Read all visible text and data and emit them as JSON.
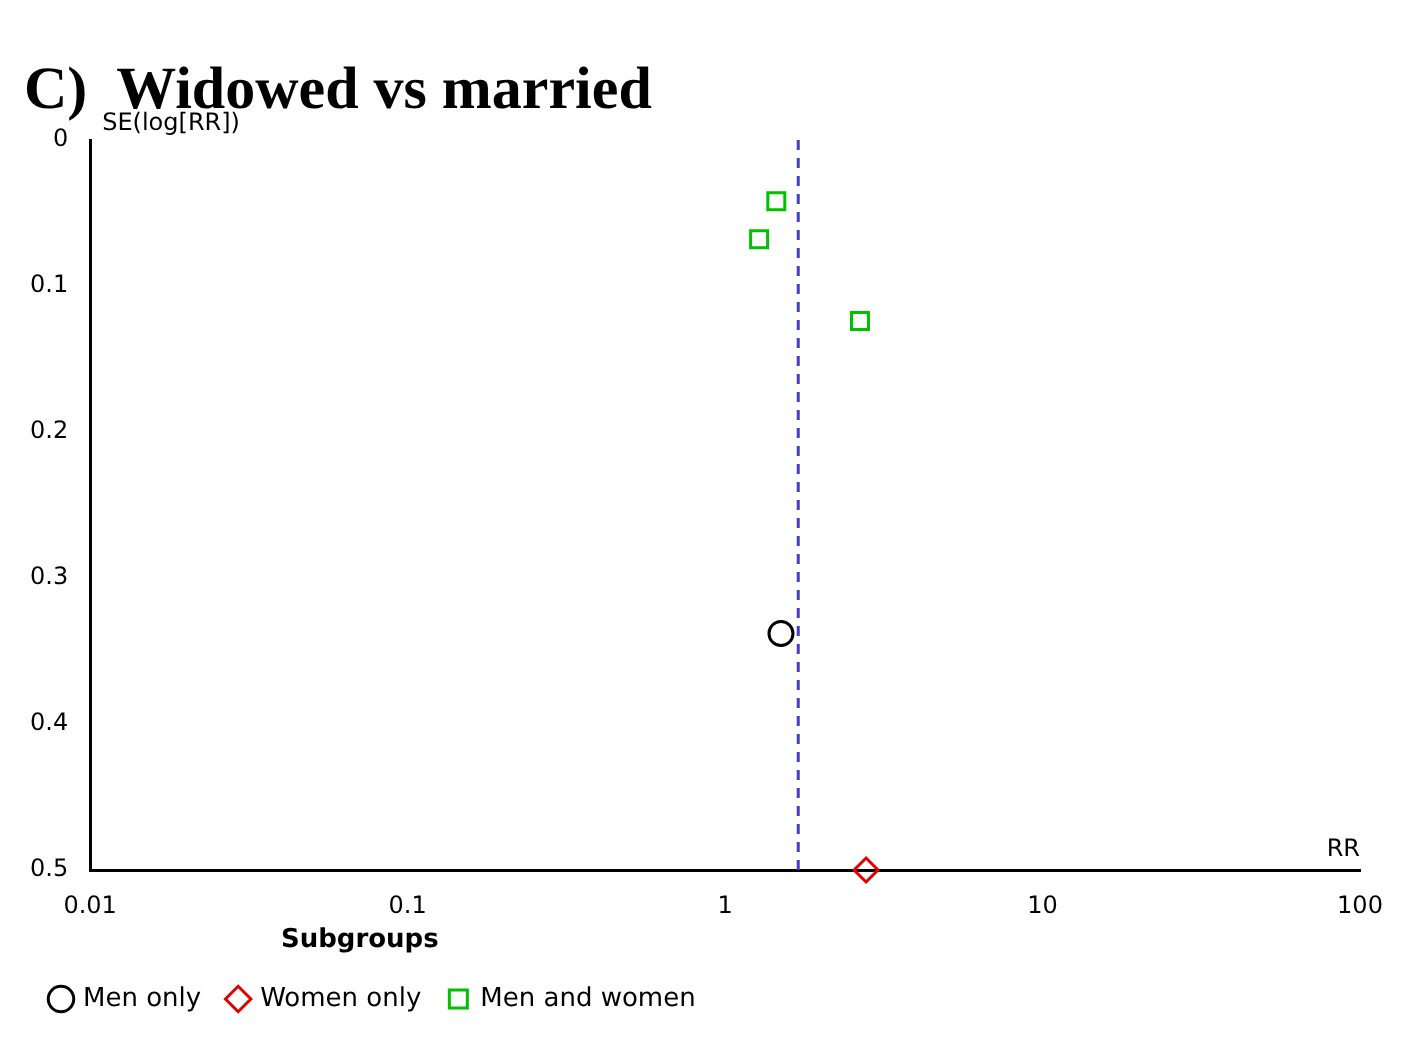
{
  "chart_data": {
    "type": "scatter",
    "title": "C)  Widowed vs married",
    "xlabel": "RR",
    "ylabel": "SE(log[RR])",
    "legend_title": "Subgroups",
    "series": [
      {
        "name": "Men only",
        "color": "#000000",
        "marker": "circle",
        "x": [
          1.5
        ],
        "values": [
          0.338
        ]
      },
      {
        "name": "Women only",
        "color": "#e00000",
        "marker": "diamond",
        "x": [
          2.78
        ],
        "values": [
          0.5
        ]
      },
      {
        "name": "Men and women",
        "color": "#00c000",
        "marker": "square",
        "x": [
          1.45,
          1.28,
          2.66
        ],
        "values": [
          0.042,
          0.068,
          0.124
        ]
      }
    ],
    "log": "x",
    "xlim": [
      0.01,
      100
    ],
    "xticks": [
      0.01,
      0.1,
      1,
      10,
      100
    ],
    "ylim": [
      0.5,
      0
    ],
    "yticks": [
      0,
      0.1,
      0.2,
      0.3,
      0.4,
      0.5
    ],
    "ref_lines": [
      {
        "axis": "x",
        "value": 1.7,
        "color": "#4040d0",
        "line_style": "dashed"
      }
    ],
    "grid": false,
    "legend": "bottom"
  }
}
